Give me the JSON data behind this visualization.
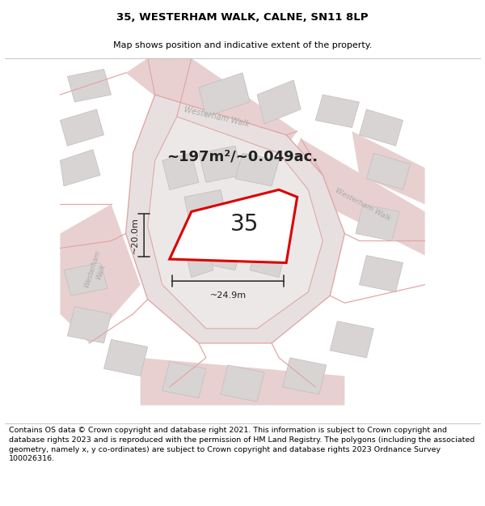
{
  "title": "35, WESTERHAM WALK, CALNE, SN11 8LP",
  "subtitle": "Map shows position and indicative extent of the property.",
  "footer": "Contains OS data © Crown copyright and database right 2021. This information is subject to Crown copyright and database rights 2023 and is reproduced with the permission of HM Land Registry. The polygons (including the associated geometry, namely x, y co-ordinates) are subject to Crown copyright and database rights 2023 Ordnance Survey 100026316.",
  "area_label": "~197m²/~0.049ac.",
  "number_label": "35",
  "width_label": "~24.9m",
  "height_label": "~20.0m",
  "map_bg": "#f2eeee",
  "road_fill": "#e8d0d0",
  "road_line": "#e0a8a8",
  "building_fill": "#d8d4d4",
  "building_edge": "#c0bcbc",
  "inner_bg": "#edeaea",
  "prop_fill": "#ffffff",
  "prop_edge": "#dd0000",
  "text_dark": "#222222",
  "text_road": "#aaaaaa",
  "title_fontsize": 9.5,
  "subtitle_fontsize": 8.0,
  "footer_fontsize": 6.8,
  "area_fontsize": 13,
  "num_fontsize": 20,
  "dim_fontsize": 8
}
